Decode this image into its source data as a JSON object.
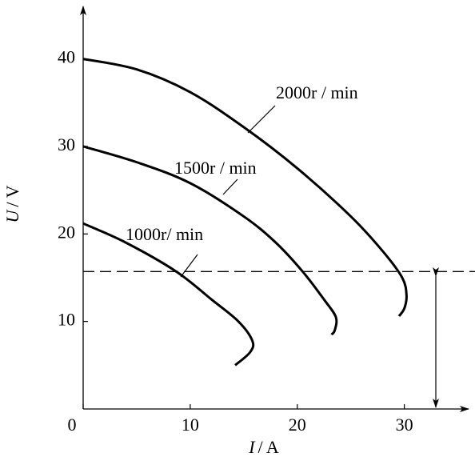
{
  "chart_data": {
    "type": "line",
    "xlabel": {
      "symbol": "I",
      "unit": "/ A"
    },
    "ylabel": {
      "symbol": "U",
      "unit": "/ V"
    },
    "xlim": [
      0,
      36
    ],
    "ylim": [
      0,
      46
    ],
    "xticks": [
      0,
      10,
      20,
      30
    ],
    "yticks": [
      10,
      20,
      30,
      40
    ],
    "reference_line": 15.7,
    "series": [
      {
        "name": "2000r / min",
        "color": "#000000",
        "x": [
          0,
          5,
          10,
          15,
          20,
          25,
          28,
          29.8,
          30.2,
          30,
          29.5
        ],
        "values": [
          40,
          38.8,
          36.2,
          32.2,
          27.5,
          22,
          18,
          15,
          13,
          11.5,
          10.6
        ]
      },
      {
        "name": "1500r / min",
        "color": "#000000",
        "x": [
          0,
          5,
          10,
          15,
          18,
          20.5,
          22.5,
          23.6,
          23.5,
          23.2
        ],
        "values": [
          30,
          28.2,
          25.8,
          22,
          19,
          15.7,
          12.5,
          10.5,
          9,
          8.5
        ]
      },
      {
        "name": "1000r/ min",
        "color": "#000000",
        "x": [
          0,
          4,
          8.7,
          12,
          14.5,
          15.8,
          15.6,
          14.2
        ],
        "values": [
          21.2,
          19,
          15.7,
          12.5,
          10,
          7.8,
          6.5,
          5
        ]
      }
    ]
  }
}
